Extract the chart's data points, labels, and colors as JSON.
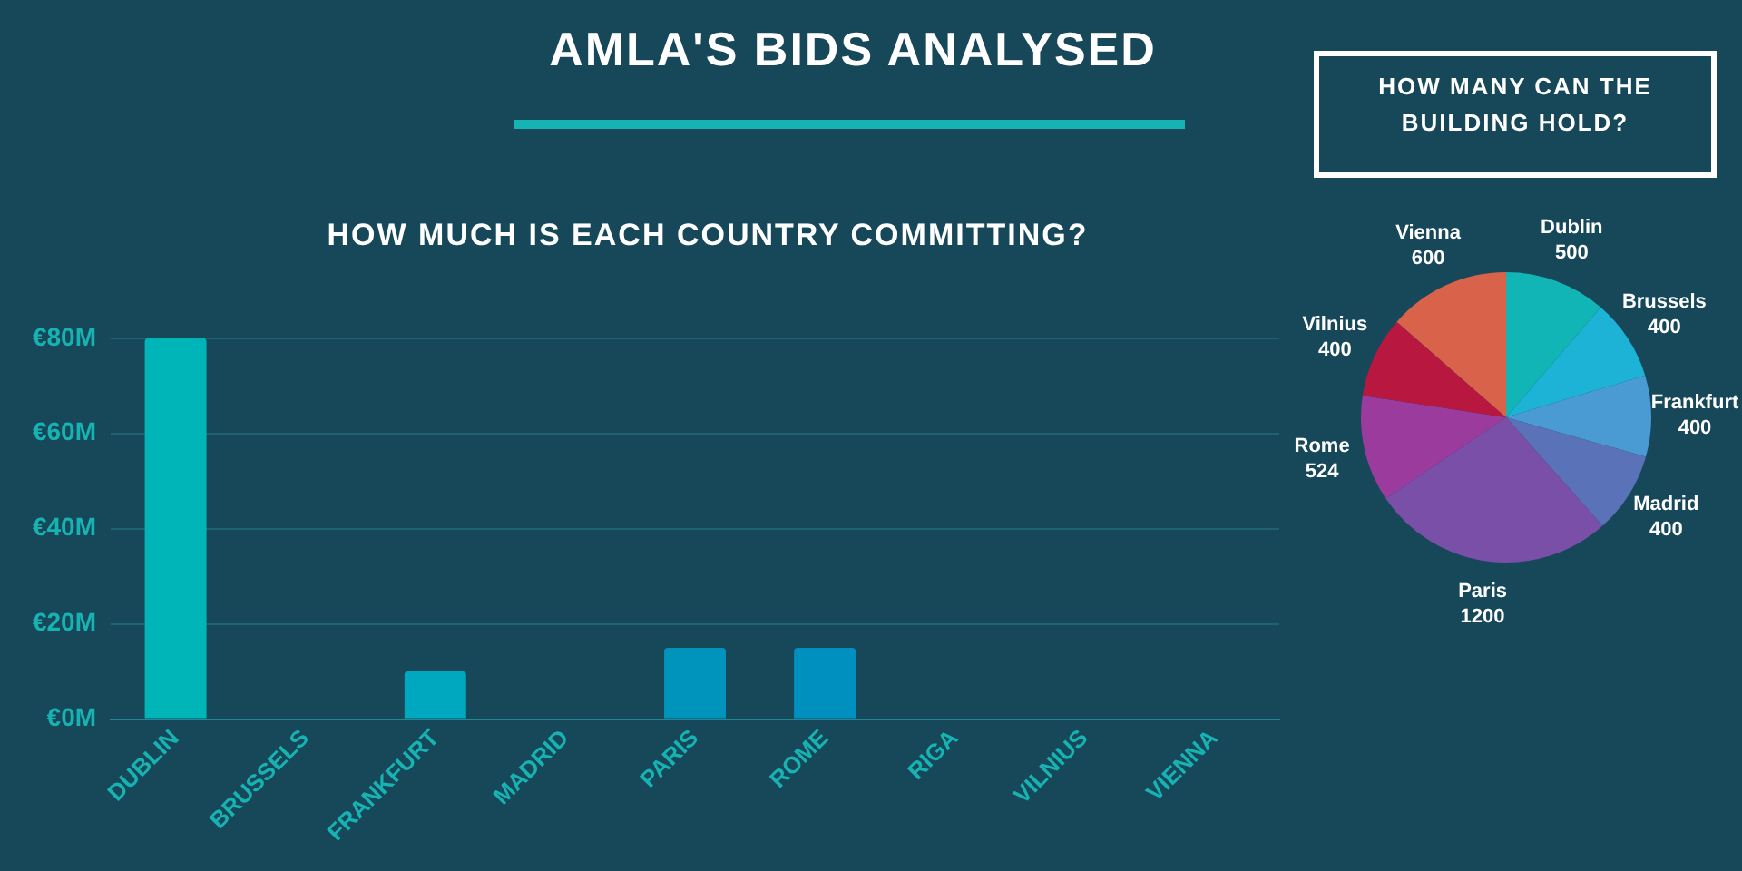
{
  "chart_data": [
    {
      "type": "bar",
      "title": "AMLA'S BIDS ANALYSED",
      "subtitle": "HOW MUCH IS EACH COUNTRY COMMITTING?",
      "categories": [
        "DUBLIN",
        "BRUSSELS",
        "FRANKFURT",
        "MADRID",
        "PARIS",
        "ROME",
        "RIGA",
        "VILNIUS",
        "VIENNA"
      ],
      "values": [
        80,
        0,
        10,
        0,
        15,
        15,
        0,
        0,
        0
      ],
      "colors": [
        "#00b5b8",
        "#00b0bc",
        "#00a8bf",
        "#00a0bd",
        "#0093bb",
        "#0090c0",
        "#0090c0",
        "#0090c0",
        "#0090c0"
      ],
      "ylim": [
        0,
        80
      ],
      "yticks": [
        {
          "value": 0,
          "label": "€0M"
        },
        {
          "value": 20,
          "label": "€20M"
        },
        {
          "value": 40,
          "label": "€40M"
        },
        {
          "value": 60,
          "label": "€60M"
        },
        {
          "value": 80,
          "label": "€80M"
        }
      ],
      "grid": "y",
      "legend": false
    },
    {
      "type": "pie",
      "title": "HOW MANY CAN THE BUILDING HOLD?",
      "categories": [
        "Dublin",
        "Brussels",
        "Frankfurt",
        "Madrid",
        "Paris",
        "Rome",
        "Vilnius",
        "Vienna"
      ],
      "values": [
        500,
        400,
        400,
        400,
        1200,
        524,
        400,
        600
      ],
      "colors": [
        "#12b5b5",
        "#1db3d6",
        "#4a9bd4",
        "#5a72b8",
        "#7a4fa8",
        "#9b3b9e",
        "#b8173f",
        "#d9634a"
      ],
      "data_labels": true,
      "legend": false
    }
  ]
}
